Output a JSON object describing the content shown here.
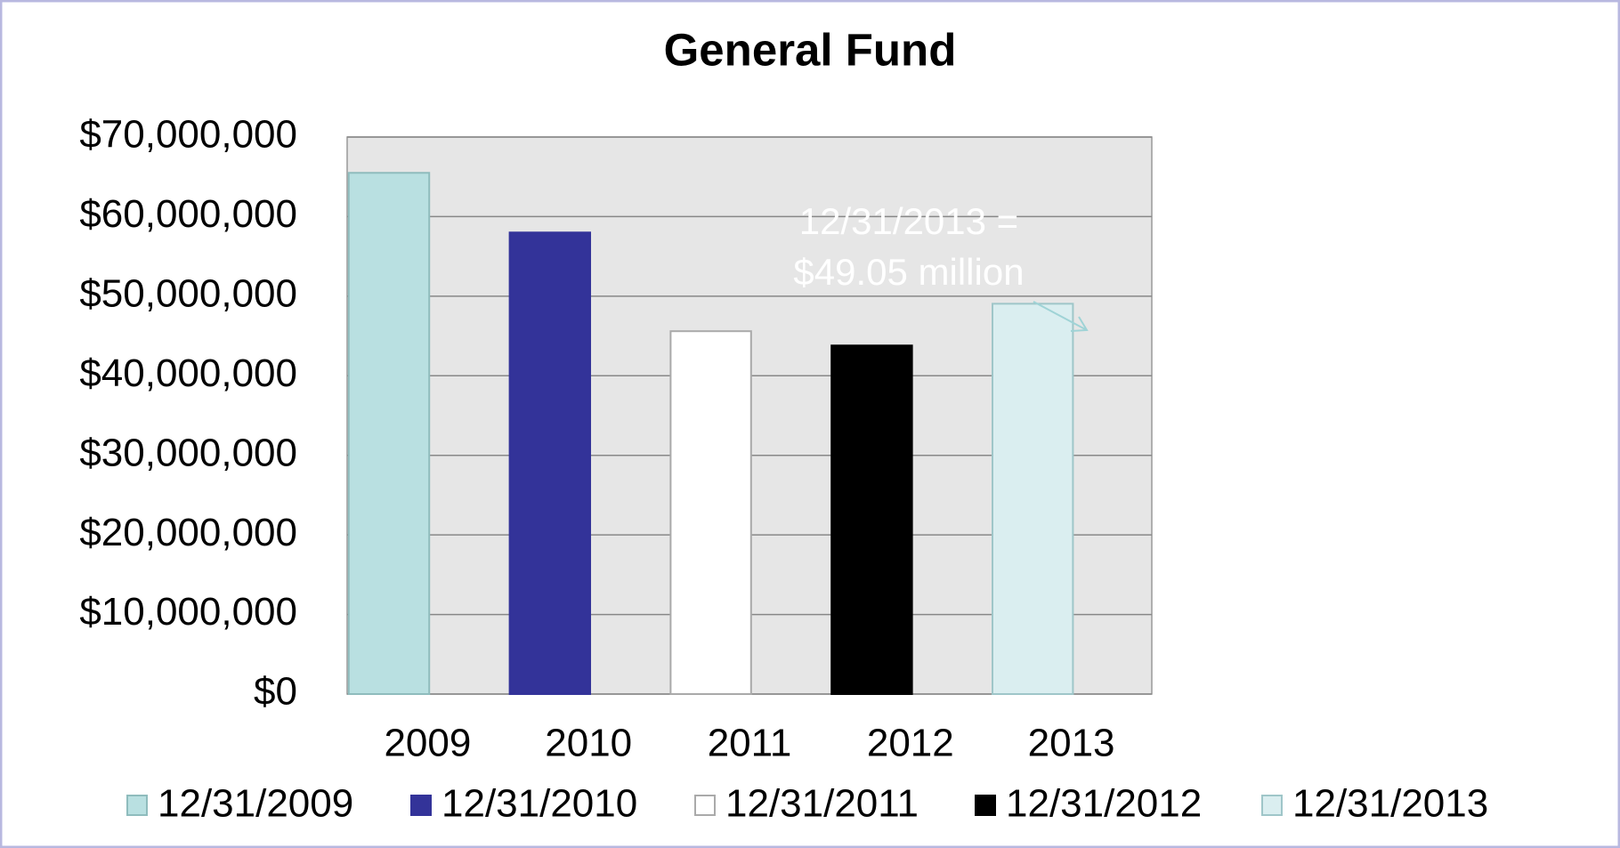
{
  "chart_data": {
    "type": "bar",
    "title": "General Fund",
    "categories": [
      "2009",
      "2010",
      "2011",
      "2012",
      "2013"
    ],
    "series": [
      {
        "name": "12/31/2009",
        "color": "#b9e0e1",
        "values": [
          65500000,
          null,
          null,
          null,
          null
        ]
      },
      {
        "name": "12/31/2010",
        "color": "#333399",
        "values": [
          null,
          58000000,
          null,
          null,
          null
        ]
      },
      {
        "name": "12/31/2011",
        "color": "#ffffff",
        "values": [
          null,
          null,
          45600000,
          null,
          null
        ]
      },
      {
        "name": "12/31/2012",
        "color": "#000000",
        "values": [
          null,
          null,
          null,
          43800000,
          null
        ]
      },
      {
        "name": "12/31/2013",
        "color": "#daeef0",
        "values": [
          null,
          null,
          null,
          null,
          49050000
        ]
      }
    ],
    "ylim": [
      0,
      70000000
    ],
    "yticks": [
      {
        "value": 0,
        "label": "$0"
      },
      {
        "value": 10000000,
        "label": "$10,000,000"
      },
      {
        "value": 20000000,
        "label": "$20,000,000"
      },
      {
        "value": 30000000,
        "label": "$30,000,000"
      },
      {
        "value": 40000000,
        "label": "$40,000,000"
      },
      {
        "value": 50000000,
        "label": "$50,000,000"
      },
      {
        "value": 60000000,
        "label": "$60,000,000"
      },
      {
        "value": 70000000,
        "label": "$70,000,000"
      }
    ],
    "grid": true,
    "legend": "bottom",
    "annotation": [
      "12/31/2013 =",
      "$49.05 million"
    ]
  }
}
